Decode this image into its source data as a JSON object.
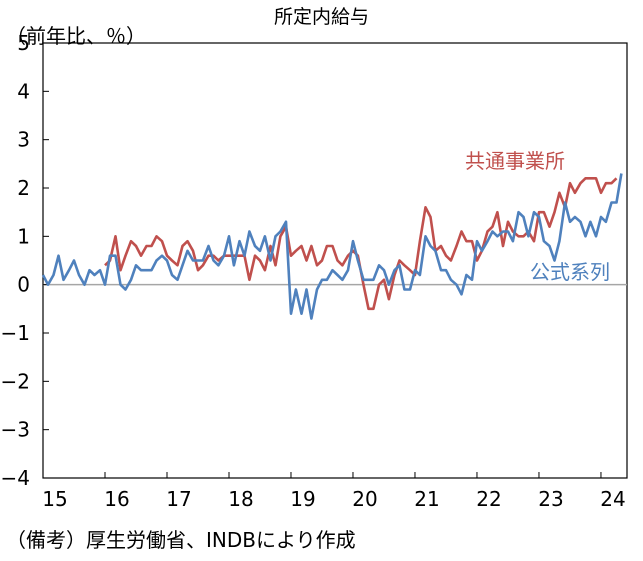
{
  "chart_data": {
    "type": "line",
    "title": "所定内給与",
    "unit_label": "（前年比、％）",
    "source_note": "（備考）厚生労働省、INDBにより作成",
    "xlim": [
      2015.0,
      2024.42
    ],
    "ylim": [
      -4,
      5
    ],
    "y_ticks": [
      5,
      4,
      3,
      2,
      1,
      0,
      -1,
      -2,
      -3,
      -4
    ],
    "y_tick_labels": [
      "5",
      "4",
      "3",
      "2",
      "1",
      "0",
      "−1",
      "−2",
      "−3",
      "−4"
    ],
    "x_ticks": [
      2015,
      2016,
      2017,
      2018,
      2019,
      2020,
      2021,
      2022,
      2023,
      2024
    ],
    "x_tick_labels": [
      "15",
      "16",
      "17",
      "18",
      "19",
      "20",
      "21",
      "22",
      "23",
      "24"
    ],
    "grid": false,
    "series": [
      {
        "name": "共通事業所",
        "color": "#c0504d",
        "points": [
          [
            2016.0,
            0.4
          ],
          [
            2016.08,
            0.5
          ],
          [
            2016.17,
            1.0
          ],
          [
            2016.25,
            0.3
          ],
          [
            2016.33,
            0.6
          ],
          [
            2016.42,
            0.9
          ],
          [
            2016.5,
            0.8
          ],
          [
            2016.58,
            0.6
          ],
          [
            2016.67,
            0.8
          ],
          [
            2016.75,
            0.8
          ],
          [
            2016.83,
            1.0
          ],
          [
            2016.92,
            0.9
          ],
          [
            2017.0,
            0.6
          ],
          [
            2017.08,
            0.5
          ],
          [
            2017.17,
            0.4
          ],
          [
            2017.25,
            0.8
          ],
          [
            2017.33,
            0.9
          ],
          [
            2017.42,
            0.7
          ],
          [
            2017.5,
            0.3
          ],
          [
            2017.58,
            0.4
          ],
          [
            2017.67,
            0.6
          ],
          [
            2017.75,
            0.6
          ],
          [
            2017.83,
            0.5
          ],
          [
            2017.92,
            0.6
          ],
          [
            2018.0,
            0.6
          ],
          [
            2018.08,
            0.6
          ],
          [
            2018.17,
            0.6
          ],
          [
            2018.25,
            0.6
          ],
          [
            2018.33,
            0.1
          ],
          [
            2018.42,
            0.6
          ],
          [
            2018.5,
            0.5
          ],
          [
            2018.58,
            0.3
          ],
          [
            2018.67,
            0.8
          ],
          [
            2018.75,
            0.4
          ],
          [
            2018.83,
            1.0
          ],
          [
            2018.92,
            1.2
          ],
          [
            2019.0,
            0.6
          ],
          [
            2019.08,
            0.7
          ],
          [
            2019.17,
            0.8
          ],
          [
            2019.25,
            0.5
          ],
          [
            2019.33,
            0.8
          ],
          [
            2019.42,
            0.4
          ],
          [
            2019.5,
            0.5
          ],
          [
            2019.58,
            0.8
          ],
          [
            2019.67,
            0.8
          ],
          [
            2019.75,
            0.5
          ],
          [
            2019.83,
            0.4
          ],
          [
            2019.92,
            0.6
          ],
          [
            2020.0,
            0.7
          ],
          [
            2020.08,
            0.6
          ],
          [
            2020.17,
            0.0
          ],
          [
            2020.25,
            -0.5
          ],
          [
            2020.33,
            -0.5
          ],
          [
            2020.42,
            0.0
          ],
          [
            2020.5,
            0.1
          ],
          [
            2020.58,
            -0.3
          ],
          [
            2020.67,
            0.2
          ],
          [
            2020.75,
            0.5
          ],
          [
            2020.83,
            0.4
          ],
          [
            2020.92,
            0.3
          ],
          [
            2021.0,
            0.2
          ],
          [
            2021.08,
            0.9
          ],
          [
            2021.17,
            1.6
          ],
          [
            2021.25,
            1.4
          ],
          [
            2021.33,
            0.7
          ],
          [
            2021.42,
            0.8
          ],
          [
            2021.5,
            0.6
          ],
          [
            2021.58,
            0.5
          ],
          [
            2021.67,
            0.8
          ],
          [
            2021.75,
            1.1
          ],
          [
            2021.83,
            0.9
          ],
          [
            2021.92,
            0.9
          ],
          [
            2022.0,
            0.5
          ],
          [
            2022.08,
            0.7
          ],
          [
            2022.17,
            1.1
          ],
          [
            2022.25,
            1.2
          ],
          [
            2022.33,
            1.5
          ],
          [
            2022.42,
            0.8
          ],
          [
            2022.5,
            1.3
          ],
          [
            2022.58,
            1.1
          ],
          [
            2022.67,
            1.0
          ],
          [
            2022.75,
            1.0
          ],
          [
            2022.83,
            1.1
          ],
          [
            2022.92,
            0.9
          ],
          [
            2023.0,
            1.5
          ],
          [
            2023.08,
            1.5
          ],
          [
            2023.17,
            1.2
          ],
          [
            2023.25,
            1.5
          ],
          [
            2023.33,
            1.9
          ],
          [
            2023.42,
            1.6
          ],
          [
            2023.5,
            2.1
          ],
          [
            2023.58,
            1.9
          ],
          [
            2023.67,
            2.1
          ],
          [
            2023.75,
            2.2
          ],
          [
            2023.83,
            2.2
          ],
          [
            2023.92,
            2.2
          ],
          [
            2024.0,
            1.9
          ],
          [
            2024.08,
            2.1
          ],
          [
            2024.17,
            2.1
          ],
          [
            2024.25,
            2.2
          ]
        ]
      },
      {
        "name": "公式系列",
        "color": "#4f81bd",
        "points": [
          [
            2015.0,
            0.2
          ],
          [
            2015.08,
            0.0
          ],
          [
            2015.17,
            0.2
          ],
          [
            2015.25,
            0.6
          ],
          [
            2015.33,
            0.1
          ],
          [
            2015.42,
            0.3
          ],
          [
            2015.5,
            0.5
          ],
          [
            2015.58,
            0.2
          ],
          [
            2015.67,
            0.0
          ],
          [
            2015.75,
            0.3
          ],
          [
            2015.83,
            0.2
          ],
          [
            2015.92,
            0.3
          ],
          [
            2016.0,
            0.0
          ],
          [
            2016.08,
            0.6
          ],
          [
            2016.17,
            0.6
          ],
          [
            2016.25,
            0.0
          ],
          [
            2016.33,
            -0.1
          ],
          [
            2016.42,
            0.1
          ],
          [
            2016.5,
            0.4
          ],
          [
            2016.58,
            0.3
          ],
          [
            2016.67,
            0.3
          ],
          [
            2016.75,
            0.3
          ],
          [
            2016.83,
            0.5
          ],
          [
            2016.92,
            0.6
          ],
          [
            2017.0,
            0.5
          ],
          [
            2017.08,
            0.2
          ],
          [
            2017.17,
            0.1
          ],
          [
            2017.25,
            0.4
          ],
          [
            2017.33,
            0.7
          ],
          [
            2017.42,
            0.5
          ],
          [
            2017.5,
            0.5
          ],
          [
            2017.58,
            0.5
          ],
          [
            2017.67,
            0.8
          ],
          [
            2017.75,
            0.5
          ],
          [
            2017.83,
            0.4
          ],
          [
            2017.92,
            0.6
          ],
          [
            2018.0,
            1.0
          ],
          [
            2018.08,
            0.4
          ],
          [
            2018.17,
            0.9
          ],
          [
            2018.25,
            0.6
          ],
          [
            2018.33,
            1.1
          ],
          [
            2018.42,
            0.8
          ],
          [
            2018.5,
            0.7
          ],
          [
            2018.58,
            1.0
          ],
          [
            2018.67,
            0.5
          ],
          [
            2018.75,
            1.0
          ],
          [
            2018.83,
            1.1
          ],
          [
            2018.92,
            1.3
          ],
          [
            2019.0,
            -0.6
          ],
          [
            2019.08,
            -0.1
          ],
          [
            2019.17,
            -0.6
          ],
          [
            2019.25,
            -0.1
          ],
          [
            2019.33,
            -0.7
          ],
          [
            2019.42,
            -0.1
          ],
          [
            2019.5,
            0.1
          ],
          [
            2019.58,
            0.1
          ],
          [
            2019.67,
            0.3
          ],
          [
            2019.75,
            0.2
          ],
          [
            2019.83,
            0.1
          ],
          [
            2019.92,
            0.3
          ],
          [
            2020.0,
            0.9
          ],
          [
            2020.08,
            0.5
          ],
          [
            2020.17,
            0.1
          ],
          [
            2020.25,
            0.1
          ],
          [
            2020.33,
            0.1
          ],
          [
            2020.42,
            0.4
          ],
          [
            2020.5,
            0.3
          ],
          [
            2020.58,
            0.0
          ],
          [
            2020.67,
            0.3
          ],
          [
            2020.75,
            0.4
          ],
          [
            2020.83,
            -0.1
          ],
          [
            2020.92,
            -0.1
          ],
          [
            2021.0,
            0.3
          ],
          [
            2021.08,
            0.2
          ],
          [
            2021.17,
            1.0
          ],
          [
            2021.25,
            0.8
          ],
          [
            2021.33,
            0.7
          ],
          [
            2021.42,
            0.3
          ],
          [
            2021.5,
            0.3
          ],
          [
            2021.58,
            0.1
          ],
          [
            2021.67,
            0.0
          ],
          [
            2021.75,
            -0.2
          ],
          [
            2021.83,
            0.2
          ],
          [
            2021.92,
            0.1
          ],
          [
            2022.0,
            0.9
          ],
          [
            2022.08,
            0.7
          ],
          [
            2022.17,
            0.9
          ],
          [
            2022.25,
            1.1
          ],
          [
            2022.33,
            1.0
          ],
          [
            2022.42,
            1.1
          ],
          [
            2022.5,
            1.1
          ],
          [
            2022.58,
            0.9
          ],
          [
            2022.67,
            1.5
          ],
          [
            2022.75,
            1.4
          ],
          [
            2022.83,
            1.0
          ],
          [
            2022.92,
            1.5
          ],
          [
            2023.0,
            1.4
          ],
          [
            2023.08,
            0.9
          ],
          [
            2023.17,
            0.8
          ],
          [
            2023.25,
            0.5
          ],
          [
            2023.33,
            0.9
          ],
          [
            2023.42,
            1.7
          ],
          [
            2023.5,
            1.3
          ],
          [
            2023.58,
            1.4
          ],
          [
            2023.67,
            1.3
          ],
          [
            2023.75,
            1.0
          ],
          [
            2023.83,
            1.3
          ],
          [
            2023.92,
            1.0
          ],
          [
            2024.0,
            1.4
          ],
          [
            2024.08,
            1.3
          ],
          [
            2024.17,
            1.7
          ],
          [
            2024.25,
            1.7
          ],
          [
            2024.33,
            2.3
          ]
        ]
      }
    ],
    "annotations": [
      {
        "text": "共通事業所",
        "series": "共通事業所"
      },
      {
        "text": "公式系列",
        "series": "公式系列"
      }
    ],
    "reference_line": {
      "y": 0,
      "color": "#a6a6a6"
    }
  }
}
